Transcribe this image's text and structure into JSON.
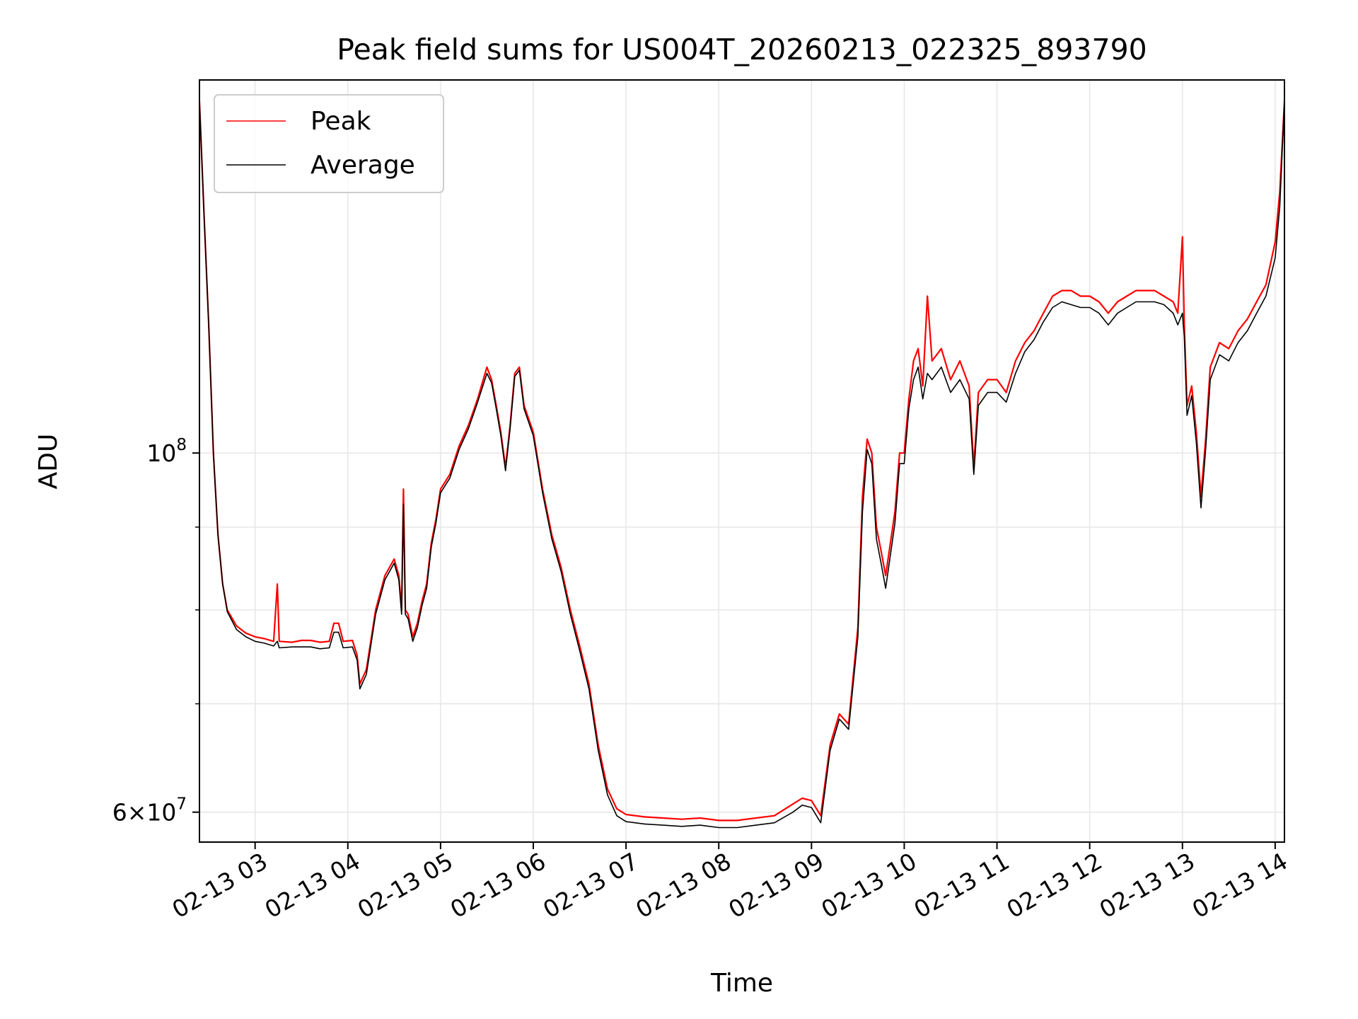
{
  "chart_data": {
    "type": "line",
    "title": "Peak field sums for US004T_20260213_022325_893790",
    "xlabel": "Time",
    "ylabel": "ADU",
    "y_scale": "log",
    "ylim": [
      57500000,
      170000000
    ],
    "x_unit": "hours",
    "xlim": [
      2.4,
      14.1
    ],
    "x_ticks": [
      3,
      4,
      5,
      6,
      7,
      8,
      9,
      10,
      11,
      12,
      13,
      14
    ],
    "x_tick_labels": [
      "02-13 03",
      "02-13 04",
      "02-13 05",
      "02-13 06",
      "02-13 07",
      "02-13 08",
      "02-13 09",
      "02-13 10",
      "02-13 11",
      "02-13 12",
      "02-13 13",
      "02-13 14"
    ],
    "y_major_ticks": [
      {
        "value": 100000000,
        "base": "10",
        "exp": "8"
      },
      {
        "value": 60000000,
        "mant": "6",
        "base": "10",
        "exp": "7"
      }
    ],
    "y_minor_ticks": [
      70000000,
      80000000,
      90000000,
      200000000
    ],
    "grid": true,
    "legend_position": "top-left",
    "colors": {
      "peak": "#ff0000",
      "average": "#000000",
      "grid": "#e6e6e6"
    },
    "series": [
      {
        "name": "Peak",
        "color": "#ff0000",
        "points": [
          [
            2.4,
            165000000
          ],
          [
            2.45,
            140000000
          ],
          [
            2.5,
            120000000
          ],
          [
            2.55,
            100000000
          ],
          [
            2.6,
            89000000
          ],
          [
            2.65,
            83000000
          ],
          [
            2.7,
            80000000
          ],
          [
            2.8,
            78200000
          ],
          [
            2.9,
            77400000
          ],
          [
            3.0,
            77000000
          ],
          [
            3.1,
            76800000
          ],
          [
            3.2,
            76500000
          ],
          [
            3.24,
            83000000
          ],
          [
            3.26,
            76500000
          ],
          [
            3.4,
            76400000
          ],
          [
            3.5,
            76600000
          ],
          [
            3.6,
            76600000
          ],
          [
            3.7,
            76400000
          ],
          [
            3.8,
            76500000
          ],
          [
            3.85,
            78500000
          ],
          [
            3.9,
            78500000
          ],
          [
            3.95,
            76500000
          ],
          [
            4.05,
            76600000
          ],
          [
            4.1,
            75000000
          ],
          [
            4.13,
            72000000
          ],
          [
            4.2,
            73500000
          ],
          [
            4.3,
            80000000
          ],
          [
            4.4,
            84000000
          ],
          [
            4.5,
            86000000
          ],
          [
            4.55,
            84000000
          ],
          [
            4.58,
            80000000
          ],
          [
            4.6,
            95000000
          ],
          [
            4.62,
            80000000
          ],
          [
            4.65,
            79500000
          ],
          [
            4.7,
            77000000
          ],
          [
            4.75,
            78500000
          ],
          [
            4.8,
            81000000
          ],
          [
            4.85,
            83000000
          ],
          [
            4.9,
            88000000
          ],
          [
            4.95,
            91000000
          ],
          [
            5.0,
            95000000
          ],
          [
            5.1,
            97000000
          ],
          [
            5.2,
            101000000
          ],
          [
            5.3,
            104000000
          ],
          [
            5.4,
            108000000
          ],
          [
            5.5,
            113000000
          ],
          [
            5.55,
            111000000
          ],
          [
            5.6,
            107000000
          ],
          [
            5.65,
            103000000
          ],
          [
            5.7,
            98000000
          ],
          [
            5.75,
            104000000
          ],
          [
            5.8,
            112000000
          ],
          [
            5.85,
            113000000
          ],
          [
            5.9,
            107000000
          ],
          [
            6.0,
            103000000
          ],
          [
            6.1,
            95000000
          ],
          [
            6.2,
            89000000
          ],
          [
            6.3,
            85000000
          ],
          [
            6.4,
            80000000
          ],
          [
            6.5,
            76000000
          ],
          [
            6.6,
            72000000
          ],
          [
            6.7,
            66000000
          ],
          [
            6.8,
            62000000
          ],
          [
            6.9,
            60300000
          ],
          [
            7.0,
            59800000
          ],
          [
            7.2,
            59600000
          ],
          [
            7.4,
            59500000
          ],
          [
            7.6,
            59400000
          ],
          [
            7.8,
            59500000
          ],
          [
            8.0,
            59300000
          ],
          [
            8.2,
            59300000
          ],
          [
            8.4,
            59500000
          ],
          [
            8.6,
            59700000
          ],
          [
            8.8,
            60700000
          ],
          [
            8.9,
            61200000
          ],
          [
            9.0,
            61000000
          ],
          [
            9.1,
            59700000
          ],
          [
            9.2,
            66000000
          ],
          [
            9.3,
            69000000
          ],
          [
            9.4,
            68000000
          ],
          [
            9.5,
            78000000
          ],
          [
            9.55,
            94000000
          ],
          [
            9.6,
            102000000
          ],
          [
            9.65,
            100000000
          ],
          [
            9.7,
            90000000
          ],
          [
            9.75,
            87000000
          ],
          [
            9.8,
            84000000
          ],
          [
            9.9,
            92000000
          ],
          [
            9.95,
            100000000
          ],
          [
            10.0,
            100000000
          ],
          [
            10.05,
            108000000
          ],
          [
            10.1,
            114000000
          ],
          [
            10.15,
            116000000
          ],
          [
            10.2,
            110000000
          ],
          [
            10.25,
            125000000
          ],
          [
            10.3,
            114000000
          ],
          [
            10.4,
            116000000
          ],
          [
            10.5,
            111000000
          ],
          [
            10.6,
            114000000
          ],
          [
            10.7,
            110000000
          ],
          [
            10.75,
            98000000
          ],
          [
            10.8,
            109000000
          ],
          [
            10.9,
            111000000
          ],
          [
            11.0,
            111000000
          ],
          [
            11.1,
            109000000
          ],
          [
            11.2,
            114000000
          ],
          [
            11.3,
            117000000
          ],
          [
            11.4,
            119000000
          ],
          [
            11.5,
            122000000
          ],
          [
            11.6,
            125000000
          ],
          [
            11.7,
            126000000
          ],
          [
            11.8,
            126000000
          ],
          [
            11.9,
            125000000
          ],
          [
            12.0,
            125000000
          ],
          [
            12.1,
            124000000
          ],
          [
            12.2,
            122000000
          ],
          [
            12.3,
            124000000
          ],
          [
            12.4,
            125000000
          ],
          [
            12.5,
            126000000
          ],
          [
            12.6,
            126000000
          ],
          [
            12.7,
            126000000
          ],
          [
            12.8,
            125000000
          ],
          [
            12.9,
            124000000
          ],
          [
            12.95,
            122000000
          ],
          [
            13.0,
            136000000
          ],
          [
            13.02,
            120000000
          ],
          [
            13.05,
            107000000
          ],
          [
            13.1,
            110000000
          ],
          [
            13.15,
            103000000
          ],
          [
            13.2,
            94000000
          ],
          [
            13.25,
            102000000
          ],
          [
            13.3,
            113000000
          ],
          [
            13.4,
            117000000
          ],
          [
            13.5,
            116000000
          ],
          [
            13.6,
            119000000
          ],
          [
            13.7,
            121000000
          ],
          [
            13.8,
            124000000
          ],
          [
            13.9,
            127000000
          ],
          [
            14.0,
            135000000
          ],
          [
            14.05,
            145000000
          ],
          [
            14.1,
            165000000
          ]
        ]
      },
      {
        "name": "Average",
        "color": "#000000",
        "points": [
          [
            2.4,
            165000000
          ],
          [
            2.45,
            140000000
          ],
          [
            2.5,
            120000000
          ],
          [
            2.55,
            100000000
          ],
          [
            2.6,
            89000000
          ],
          [
            2.65,
            83000000
          ],
          [
            2.7,
            79800000
          ],
          [
            2.8,
            77800000
          ],
          [
            2.9,
            77000000
          ],
          [
            3.0,
            76500000
          ],
          [
            3.1,
            76300000
          ],
          [
            3.2,
            76000000
          ],
          [
            3.24,
            76500000
          ],
          [
            3.26,
            75800000
          ],
          [
            3.4,
            75900000
          ],
          [
            3.5,
            75900000
          ],
          [
            3.6,
            75900000
          ],
          [
            3.7,
            75700000
          ],
          [
            3.8,
            75800000
          ],
          [
            3.85,
            77500000
          ],
          [
            3.9,
            77500000
          ],
          [
            3.95,
            75800000
          ],
          [
            4.05,
            75900000
          ],
          [
            4.1,
            74500000
          ],
          [
            4.13,
            71500000
          ],
          [
            4.2,
            73000000
          ],
          [
            4.3,
            79500000
          ],
          [
            4.4,
            83500000
          ],
          [
            4.5,
            85500000
          ],
          [
            4.55,
            83500000
          ],
          [
            4.58,
            79500000
          ],
          [
            4.6,
            93000000
          ],
          [
            4.62,
            79500000
          ],
          [
            4.65,
            79000000
          ],
          [
            4.7,
            76500000
          ],
          [
            4.75,
            78000000
          ],
          [
            4.8,
            80500000
          ],
          [
            4.85,
            82500000
          ],
          [
            4.9,
            87500000
          ],
          [
            4.95,
            90500000
          ],
          [
            5.0,
            94500000
          ],
          [
            5.1,
            96500000
          ],
          [
            5.2,
            100500000
          ],
          [
            5.3,
            103500000
          ],
          [
            5.4,
            107500000
          ],
          [
            5.5,
            112000000
          ],
          [
            5.55,
            110500000
          ],
          [
            5.6,
            106500000
          ],
          [
            5.65,
            102500000
          ],
          [
            5.7,
            97500000
          ],
          [
            5.75,
            103500000
          ],
          [
            5.8,
            111500000
          ],
          [
            5.85,
            112500000
          ],
          [
            5.9,
            106500000
          ],
          [
            6.0,
            102500000
          ],
          [
            6.1,
            94500000
          ],
          [
            6.2,
            88500000
          ],
          [
            6.3,
            84500000
          ],
          [
            6.4,
            79500000
          ],
          [
            6.5,
            75500000
          ],
          [
            6.6,
            71500000
          ],
          [
            6.7,
            65500000
          ],
          [
            6.8,
            61500000
          ],
          [
            6.9,
            59700000
          ],
          [
            7.0,
            59200000
          ],
          [
            7.2,
            59000000
          ],
          [
            7.4,
            58900000
          ],
          [
            7.6,
            58800000
          ],
          [
            7.8,
            58900000
          ],
          [
            8.0,
            58700000
          ],
          [
            8.2,
            58700000
          ],
          [
            8.4,
            58900000
          ],
          [
            8.6,
            59100000
          ],
          [
            8.8,
            60000000
          ],
          [
            8.9,
            60600000
          ],
          [
            9.0,
            60400000
          ],
          [
            9.1,
            59100000
          ],
          [
            9.2,
            65500000
          ],
          [
            9.3,
            68500000
          ],
          [
            9.4,
            67500000
          ],
          [
            9.5,
            77000000
          ],
          [
            9.55,
            92000000
          ],
          [
            9.6,
            100500000
          ],
          [
            9.65,
            98500000
          ],
          [
            9.7,
            88500000
          ],
          [
            9.75,
            85500000
          ],
          [
            9.8,
            82500000
          ],
          [
            9.9,
            90500000
          ],
          [
            9.95,
            98500000
          ],
          [
            10.0,
            98500000
          ],
          [
            10.05,
            106500000
          ],
          [
            10.1,
            111000000
          ],
          [
            10.15,
            113000000
          ],
          [
            10.2,
            108000000
          ],
          [
            10.25,
            112000000
          ],
          [
            10.3,
            111000000
          ],
          [
            10.4,
            113000000
          ],
          [
            10.5,
            109000000
          ],
          [
            10.6,
            111000000
          ],
          [
            10.7,
            108000000
          ],
          [
            10.75,
            97000000
          ],
          [
            10.8,
            107000000
          ],
          [
            10.9,
            109000000
          ],
          [
            11.0,
            109000000
          ],
          [
            11.1,
            107500000
          ],
          [
            11.2,
            112000000
          ],
          [
            11.3,
            115500000
          ],
          [
            11.4,
            117500000
          ],
          [
            11.5,
            120500000
          ],
          [
            11.6,
            123000000
          ],
          [
            11.7,
            124000000
          ],
          [
            11.8,
            123500000
          ],
          [
            11.9,
            123000000
          ],
          [
            12.0,
            123000000
          ],
          [
            12.1,
            122000000
          ],
          [
            12.2,
            120000000
          ],
          [
            12.3,
            122000000
          ],
          [
            12.4,
            123000000
          ],
          [
            12.5,
            124000000
          ],
          [
            12.6,
            124000000
          ],
          [
            12.7,
            124000000
          ],
          [
            12.8,
            123500000
          ],
          [
            12.9,
            122000000
          ],
          [
            12.95,
            120000000
          ],
          [
            13.0,
            122000000
          ],
          [
            13.02,
            118000000
          ],
          [
            13.05,
            105500000
          ],
          [
            13.1,
            108500000
          ],
          [
            13.15,
            101500000
          ],
          [
            13.2,
            92500000
          ],
          [
            13.25,
            100500000
          ],
          [
            13.3,
            111000000
          ],
          [
            13.4,
            115000000
          ],
          [
            13.5,
            114000000
          ],
          [
            13.6,
            117000000
          ],
          [
            13.7,
            119000000
          ],
          [
            13.8,
            122000000
          ],
          [
            13.9,
            125000000
          ],
          [
            14.0,
            132000000
          ],
          [
            14.05,
            142000000
          ],
          [
            14.1,
            165000000
          ]
        ]
      }
    ]
  }
}
